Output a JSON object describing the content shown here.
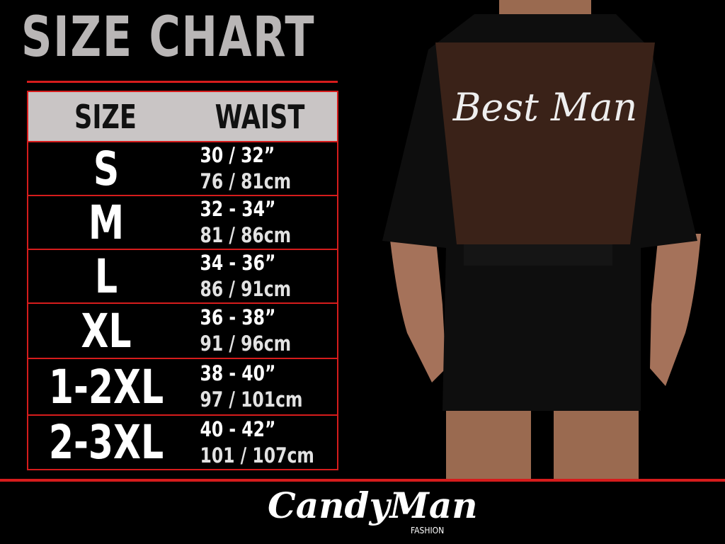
{
  "title": "SIZE CHART",
  "table": {
    "headers": {
      "size": "SIZE",
      "waist": "WAIST"
    },
    "rows": [
      {
        "size": "S",
        "inches": "30 / 32”",
        "cm": "76 / 81cm"
      },
      {
        "size": "M",
        "inches": "32 - 34”",
        "cm": "81 / 86cm"
      },
      {
        "size": "L",
        "inches": "34 - 36”",
        "cm": "86 / 91cm"
      },
      {
        "size": "XL",
        "inches": "36 - 38”",
        "cm": "91 / 96cm"
      },
      {
        "size": "1-2XL",
        "inches": "38 - 40”",
        "cm": "97 / 101cm"
      },
      {
        "size": "2-3XL",
        "inches": "40 - 42”",
        "cm": "101 / 107cm"
      }
    ]
  },
  "photo": {
    "garment_text": "Best Man"
  },
  "brand": {
    "name": "CandyMan",
    "sub": "FASHION"
  },
  "colors": {
    "accent": "#d61c1c",
    "header_bg": "#c9c5c5",
    "title": "#b9b6b6"
  }
}
